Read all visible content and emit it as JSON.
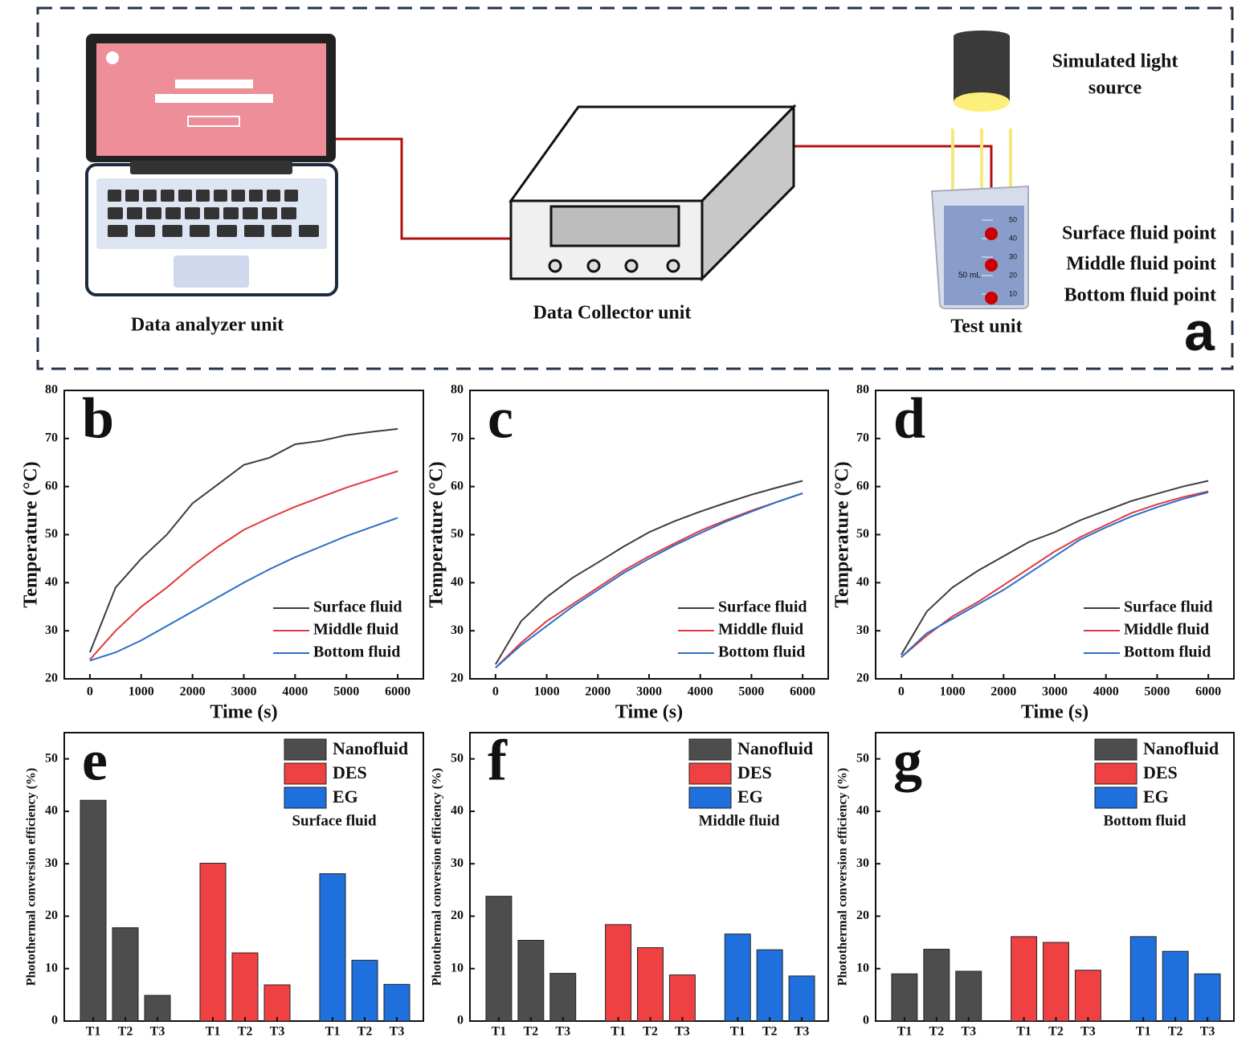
{
  "diagram": {
    "panel_label": "a",
    "laptop_label": "Data analyzer unit",
    "collector_label": "Data Collector unit",
    "test_label": "Test unit",
    "light_label_line1": "Simulated light",
    "light_label_line2": "source",
    "surface_point": "Surface fluid point",
    "middle_point": "Middle fluid point",
    "bottom_point": "Bottom fluid point",
    "beaker_volume": "50 mL",
    "beaker_marks": [
      "50",
      "40",
      "30",
      "20",
      "10"
    ]
  },
  "chart_data": [
    {
      "type": "line",
      "label": "b",
      "xlabel": "Time (s)",
      "ylabel": "Temperature (°C)",
      "legend": "lower right",
      "x": [
        0,
        500,
        1000,
        1500,
        2000,
        2500,
        3000,
        3500,
        4000,
        4500,
        5000,
        5500,
        6000
      ],
      "xlim": [
        -500,
        6500
      ],
      "xticks": [
        0,
        1000,
        2000,
        3000,
        4000,
        5000,
        6000
      ],
      "ylim": [
        20,
        80
      ],
      "yticks": [
        20,
        30,
        40,
        50,
        60,
        70,
        80
      ],
      "series": [
        {
          "name": "Surface fluid",
          "color": "#3d3d3d",
          "values": [
            25.5,
            39,
            45,
            50,
            56.5,
            60.5,
            64.5,
            66,
            68.8,
            69.5,
            70.7,
            71.4,
            72
          ]
        },
        {
          "name": "Middle fluid",
          "color": "#e0393e",
          "values": [
            24,
            30,
            35,
            39,
            43.5,
            47.5,
            51,
            53.5,
            55.8,
            57.8,
            59.8,
            61.5,
            63.2
          ]
        },
        {
          "name": "Bottom fluid",
          "color": "#2a6fc8",
          "values": [
            23.8,
            25.5,
            28,
            31,
            34,
            37,
            40,
            42.8,
            45.3,
            47.5,
            49.7,
            51.6,
            53.5
          ]
        }
      ]
    },
    {
      "type": "line",
      "label": "c",
      "xlabel": "Time (s)",
      "ylabel": "Temperature (°C)",
      "legend": "lower right",
      "x": [
        0,
        500,
        1000,
        1500,
        2000,
        2500,
        3000,
        3500,
        4000,
        4500,
        5000,
        5500,
        6000
      ],
      "xlim": [
        -500,
        6500
      ],
      "xticks": [
        0,
        1000,
        2000,
        3000,
        4000,
        5000,
        6000
      ],
      "ylim": [
        20,
        80
      ],
      "yticks": [
        20,
        30,
        40,
        50,
        60,
        70,
        80
      ],
      "series": [
        {
          "name": "Surface fluid",
          "color": "#3d3d3d",
          "values": [
            23,
            32,
            37,
            41,
            44.2,
            47.5,
            50.5,
            52.8,
            54.8,
            56.6,
            58.3,
            59.8,
            61.2
          ]
        },
        {
          "name": "Middle fluid",
          "color": "#e0393e",
          "values": [
            22.3,
            27.5,
            32,
            35.5,
            39,
            42.5,
            45.5,
            48.2,
            50.8,
            53,
            55,
            56.8,
            58.6
          ]
        },
        {
          "name": "Bottom fluid",
          "color": "#2a6fc8",
          "values": [
            22.3,
            27,
            31,
            35,
            38.5,
            42,
            45,
            47.8,
            50.3,
            52.7,
            54.8,
            56.8,
            58.6
          ]
        }
      ]
    },
    {
      "type": "line",
      "label": "d",
      "xlabel": "Time (s)",
      "ylabel": "Temperature (°C)",
      "legend": "lower right",
      "x": [
        0,
        500,
        1000,
        1500,
        2000,
        2500,
        3000,
        3500,
        4000,
        4500,
        5000,
        5500,
        6000
      ],
      "xlim": [
        -500,
        6500
      ],
      "xticks": [
        0,
        1000,
        2000,
        3000,
        4000,
        5000,
        6000
      ],
      "ylim": [
        20,
        80
      ],
      "yticks": [
        20,
        30,
        40,
        50,
        60,
        70,
        80
      ],
      "series": [
        {
          "name": "Surface fluid",
          "color": "#3d3d3d",
          "values": [
            25,
            34,
            39,
            42.5,
            45.5,
            48.5,
            50.5,
            53,
            55,
            57,
            58.5,
            60,
            61.2
          ]
        },
        {
          "name": "Middle fluid",
          "color": "#e0393e",
          "values": [
            24.5,
            29,
            33,
            36,
            39.5,
            43,
            46.5,
            49.5,
            52,
            54.5,
            56.3,
            57.8,
            59
          ]
        },
        {
          "name": "Bottom fluid",
          "color": "#2a6fc8",
          "values": [
            24.5,
            29.5,
            32.5,
            35.5,
            38.5,
            42,
            45.5,
            49,
            51.5,
            53.8,
            55.7,
            57.4,
            58.8
          ]
        }
      ]
    },
    {
      "type": "bar",
      "label": "e",
      "annotation": "Surface fluid",
      "ylabel": "Photothermal conversion efficiency (%)",
      "legend": "upper right",
      "categories": [
        "T1",
        "T2",
        "T3"
      ],
      "ylim": [
        0,
        55
      ],
      "yticks": [
        0,
        10,
        20,
        30,
        40,
        50
      ],
      "series": [
        {
          "name": "Nanofluid",
          "color": "#4d4d4d",
          "values": [
            42.1,
            17.8,
            4.9
          ]
        },
        {
          "name": "DES",
          "color": "#ef4142",
          "values": [
            30.1,
            13,
            6.9
          ]
        },
        {
          "name": "EG",
          "color": "#1f6fdc",
          "values": [
            28.1,
            11.6,
            7
          ]
        }
      ]
    },
    {
      "type": "bar",
      "label": "f",
      "annotation": "Middle fluid",
      "ylabel": "Photothermal conversion efficiency (%)",
      "legend": "upper right",
      "categories": [
        "T1",
        "T2",
        "T3"
      ],
      "ylim": [
        0,
        55
      ],
      "yticks": [
        0,
        10,
        20,
        30,
        40,
        50
      ],
      "series": [
        {
          "name": "Nanofluid",
          "color": "#4d4d4d",
          "values": [
            23.8,
            15.4,
            9.1
          ]
        },
        {
          "name": "DES",
          "color": "#ef4142",
          "values": [
            18.4,
            14,
            8.8
          ]
        },
        {
          "name": "EG",
          "color": "#1f6fdc",
          "values": [
            16.6,
            13.6,
            8.6
          ]
        }
      ]
    },
    {
      "type": "bar",
      "label": "g",
      "annotation": "Bottom fluid",
      "ylabel": "Photothermal conversion efficiency (%)",
      "legend": "upper right",
      "categories": [
        "T1",
        "T2",
        "T3"
      ],
      "ylim": [
        0,
        55
      ],
      "yticks": [
        0,
        10,
        20,
        30,
        40,
        50
      ],
      "series": [
        {
          "name": "Nanofluid",
          "color": "#4d4d4d",
          "values": [
            9,
            13.7,
            9.5
          ]
        },
        {
          "name": "DES",
          "color": "#ef4142",
          "values": [
            16.1,
            15,
            9.7
          ]
        },
        {
          "name": "EG",
          "color": "#1f6fdc",
          "values": [
            16.1,
            13.3,
            9
          ]
        }
      ]
    }
  ]
}
